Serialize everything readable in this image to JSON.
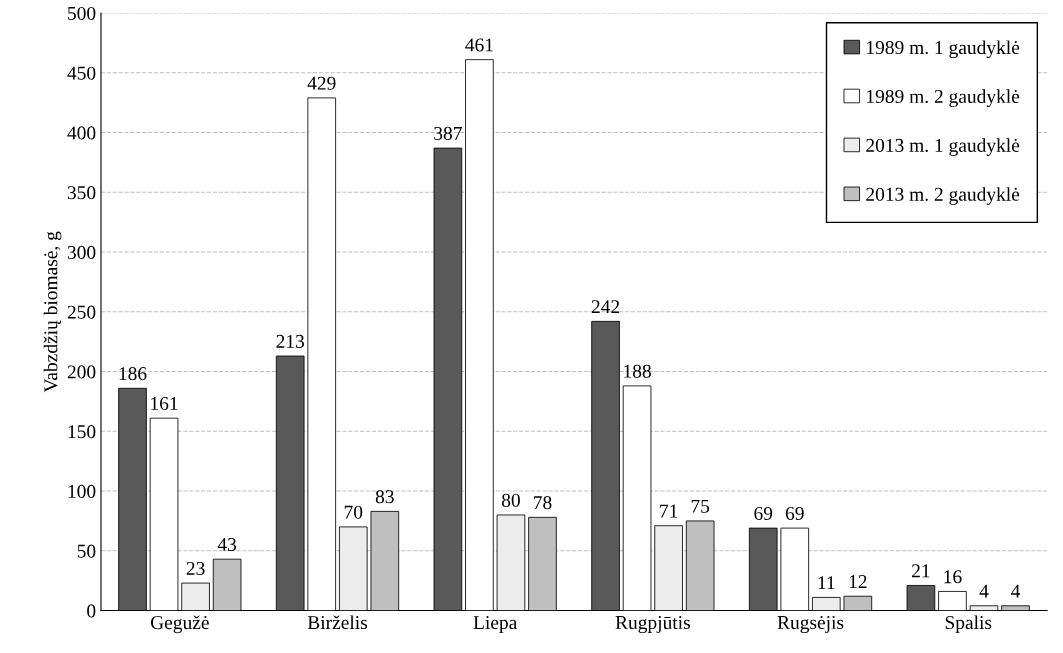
{
  "chart_data": {
    "type": "bar",
    "ylabel": "Vabzdžių biomasė, g",
    "categories": [
      "Gegužė",
      "Birželis",
      "Liepa",
      "Rugpjūtis",
      "Rugsėjis",
      "Spalis"
    ],
    "series": [
      {
        "name": "1989 m. 1 gaudyklė",
        "color": "#595959",
        "values": [
          186,
          213,
          387,
          242,
          69,
          21
        ]
      },
      {
        "name": "1989 m. 2 gaudyklė",
        "color": "#ffffff",
        "values": [
          161,
          429,
          461,
          188,
          69,
          16
        ]
      },
      {
        "name": "2013 m. 1 gaudyklė",
        "color": "#ececec",
        "values": [
          23,
          70,
          80,
          71,
          11,
          4
        ]
      },
      {
        "name": "2013 m. 2 gaudyklė",
        "color": "#bfbfbf",
        "values": [
          43,
          83,
          78,
          75,
          12,
          4
        ]
      }
    ],
    "ylim": [
      0,
      500
    ],
    "yticks": [
      0,
      50,
      100,
      150,
      200,
      250,
      300,
      350,
      400,
      450,
      500
    ],
    "grid": "y",
    "legend": "top right",
    "data_labels": true
  }
}
